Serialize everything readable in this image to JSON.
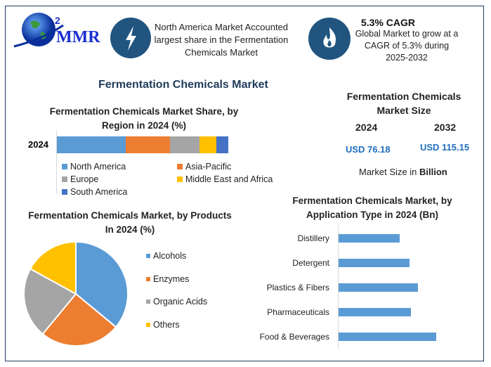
{
  "logo": {
    "text": "MMR"
  },
  "highlight1": {
    "icon": "lightning-icon",
    "text": "North America Market Accounted largest share in the Fermentation Chemicals Market"
  },
  "highlight2": {
    "icon": "flame-icon",
    "title": "5.3% CAGR",
    "text": "Global Market to grow at a CAGR of 5.3% during 2025-2032"
  },
  "main_title": "Fermentation Chemicals Market",
  "market_size": {
    "title": "Fermentation Chemicals Market Size",
    "year1": "2024",
    "year2": "2032",
    "value1": "USD 76.18",
    "value2": "USD 115.15",
    "note_prefix": "Market Size in ",
    "note_unit": "Billion"
  },
  "colors": {
    "blue": "#5b9bd5",
    "orange": "#ed7d31",
    "gray": "#a5a5a5",
    "yellow": "#ffc000",
    "darkblue": "#4472c4",
    "accent": "#1f3b5a",
    "value": "#1f6fbf"
  },
  "chart_data": [
    {
      "type": "bar",
      "orientation": "horizontal",
      "stacked": true,
      "title": "Fermentation Chemicals Market Share, by Region in 2024 (%)",
      "categories": [
        "2024"
      ],
      "series": [
        {
          "name": "North America",
          "values": [
            40
          ]
        },
        {
          "name": "Asia-Pacific",
          "values": [
            26
          ]
        },
        {
          "name": "Europe",
          "values": [
            17
          ]
        },
        {
          "name": "Middle East and Africa",
          "values": [
            10
          ]
        },
        {
          "name": "South America",
          "values": [
            7
          ]
        }
      ],
      "legend": "bottom"
    },
    {
      "type": "pie",
      "title": "Fermentation Chemicals Market, by Products In 2024 (%)",
      "categories": [
        "Alcohols",
        "Enzymes",
        "Organic Acids",
        "Others"
      ],
      "values": [
        36,
        25,
        22,
        17
      ],
      "legend": "right"
    },
    {
      "type": "bar",
      "orientation": "horizontal",
      "title": "Fermentation Chemicals Market, by Application Type in 2024 (Bn)",
      "categories": [
        "Distillery",
        "Detergent",
        "Plastics & Fibers",
        "Pharmaceuticals",
        "Food & Beverages"
      ],
      "values": [
        12.2,
        14.1,
        15.9,
        14.5,
        19.5
      ],
      "xlim": [
        0,
        25
      ]
    }
  ]
}
